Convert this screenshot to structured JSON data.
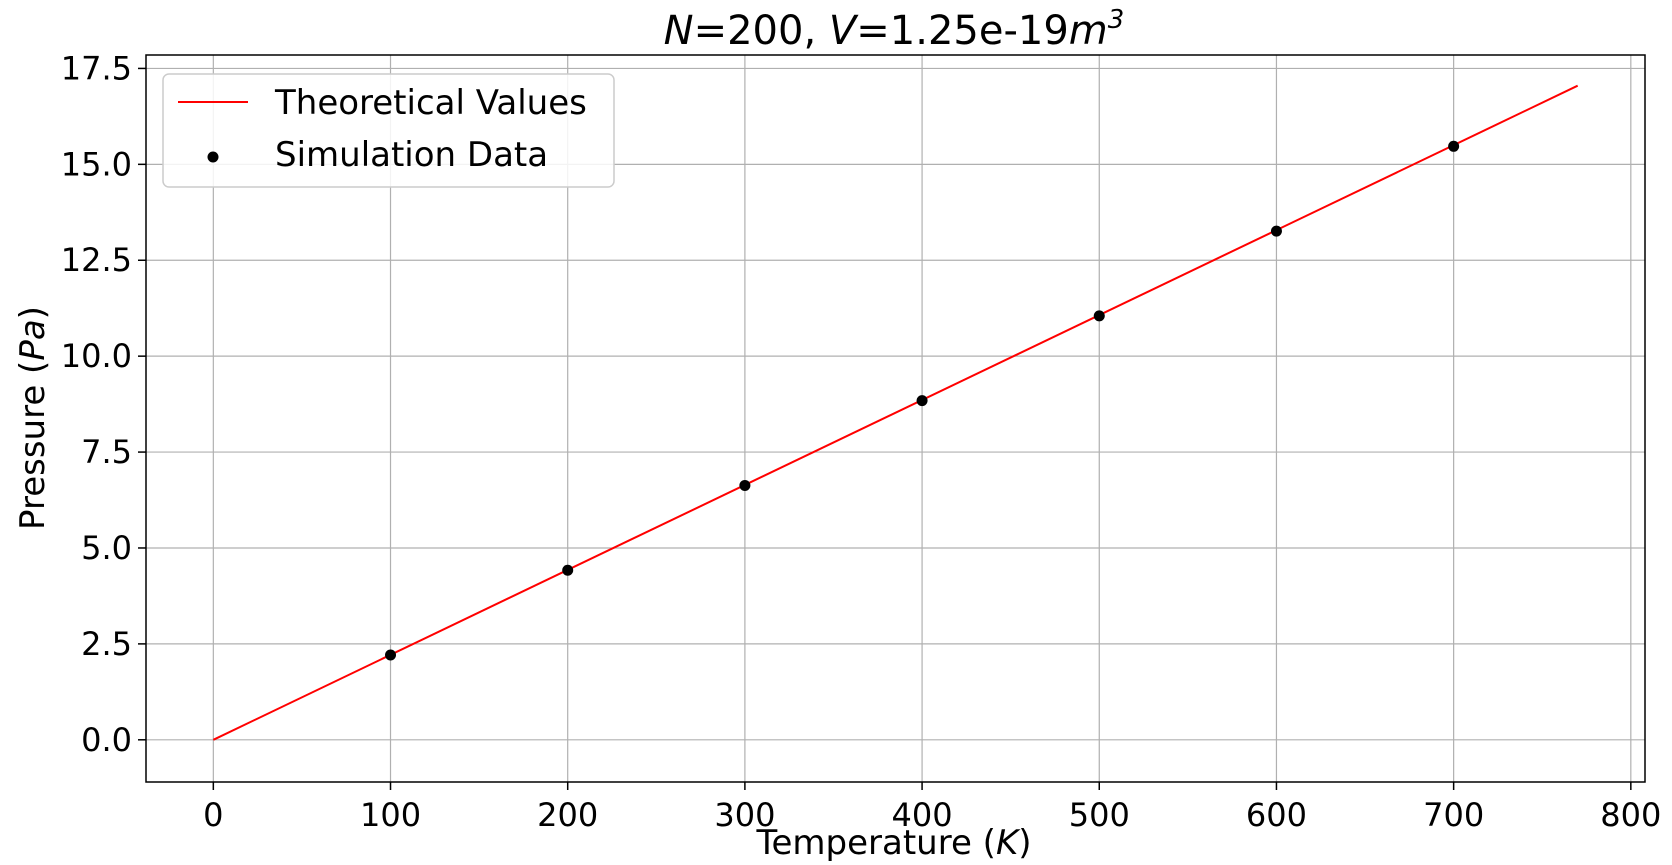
{
  "chart_data": {
    "type": "line",
    "title": {
      "n_sym": "N",
      "n_val": "=200, ",
      "v_sym": "V",
      "v_val": "=1.25e-19",
      "unit": "m",
      "exp": "3"
    },
    "xlabel": {
      "text": "Temperature (",
      "sym": "K",
      "close": ")"
    },
    "ylabel": {
      "text": "Pressure (",
      "sym": "Pa",
      "close": ")"
    },
    "xlim": [
      -38,
      808
    ],
    "ylim": [
      -1.1,
      17.85
    ],
    "x_ticks": [
      0,
      100,
      200,
      300,
      400,
      500,
      600,
      700,
      800
    ],
    "y_ticks": [
      0.0,
      2.5,
      5.0,
      7.5,
      10.0,
      12.5,
      15.0,
      17.5
    ],
    "x_tick_labels": [
      "0",
      "100",
      "200",
      "300",
      "400",
      "500",
      "600",
      "700",
      "800"
    ],
    "y_tick_labels": [
      "0.0",
      "2.5",
      "5.0",
      "7.5",
      "10.0",
      "12.5",
      "15.0",
      "17.5"
    ],
    "grid": true,
    "legend_position": "top-left",
    "series": [
      {
        "name": "Theoretical Values",
        "kind": "line",
        "color": "#ff0000",
        "x": [
          0,
          770
        ],
        "y": [
          0.0,
          17.05
        ]
      },
      {
        "name": "Simulation Data",
        "kind": "scatter",
        "color": "#000000",
        "x": [
          100,
          200,
          300,
          400,
          500,
          600,
          700
        ],
        "y": [
          2.21,
          4.42,
          6.63,
          8.84,
          11.05,
          13.26,
          15.47
        ]
      }
    ]
  }
}
